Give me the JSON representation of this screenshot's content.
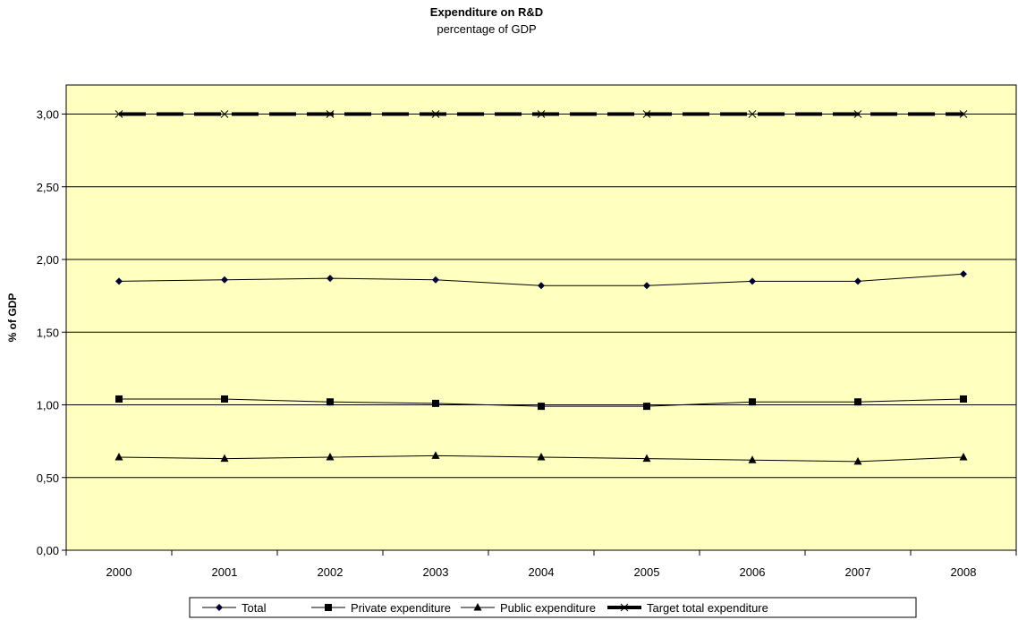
{
  "chart_data": {
    "type": "line",
    "title": "Expenditure on R&D",
    "subtitle": "percentage of GDP",
    "xlabel": "",
    "ylabel": "% of GDP",
    "categories": [
      "2000",
      "2001",
      "2002",
      "2003",
      "2004",
      "2005",
      "2006",
      "2007",
      "2008"
    ],
    "ylim": [
      0,
      3.2
    ],
    "yticks": [
      0,
      0.5,
      1.0,
      1.5,
      2.0,
      2.5,
      3.0
    ],
    "ytick_labels": [
      "0,00",
      "0,50",
      "1,00",
      "1,50",
      "2,00",
      "2,50",
      "3,00"
    ],
    "grid": "horizontal",
    "legend_position": "bottom",
    "plot_background": "#FFFFC0",
    "series": [
      {
        "name": "Total",
        "marker": "diamond",
        "color": "#000000",
        "values": [
          1.85,
          1.86,
          1.87,
          1.86,
          1.82,
          1.82,
          1.85,
          1.85,
          1.9
        ]
      },
      {
        "name": "Private expenditure",
        "marker": "square",
        "color": "#000000",
        "values": [
          1.04,
          1.04,
          1.02,
          1.01,
          0.99,
          0.99,
          1.02,
          1.02,
          1.04
        ]
      },
      {
        "name": "Public expenditure",
        "marker": "triangle",
        "color": "#000000",
        "values": [
          0.64,
          0.63,
          0.64,
          0.65,
          0.64,
          0.63,
          0.62,
          0.61,
          0.64
        ]
      },
      {
        "name": "Target total expenditure",
        "marker": "x",
        "color": "#000000",
        "dashed": true,
        "values": [
          3.0,
          3.0,
          3.0,
          3.0,
          3.0,
          3.0,
          3.0,
          3.0,
          3.0
        ]
      }
    ]
  }
}
